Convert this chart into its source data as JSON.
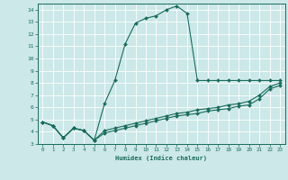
{
  "xlabel": "Humidex (Indice chaleur)",
  "background_color": "#cce8e8",
  "grid_color": "#ffffff",
  "line_color": "#1a6b5a",
  "xlim": [
    -0.5,
    23.5
  ],
  "ylim": [
    3,
    14.5
  ],
  "yticks": [
    3,
    4,
    5,
    6,
    7,
    8,
    9,
    10,
    11,
    12,
    13,
    14
  ],
  "xticks": [
    0,
    1,
    2,
    3,
    4,
    5,
    6,
    7,
    8,
    9,
    10,
    11,
    12,
    13,
    14,
    15,
    16,
    17,
    18,
    19,
    20,
    21,
    22,
    23
  ],
  "series": [
    {
      "x": [
        0,
        1,
        2,
        3,
        4,
        5,
        6,
        7,
        8,
        9,
        10,
        11,
        12,
        13,
        14,
        15,
        16,
        17,
        18,
        19,
        20,
        21,
        22,
        23
      ],
      "y": [
        4.8,
        4.5,
        3.5,
        4.3,
        4.1,
        3.3,
        6.3,
        8.2,
        11.2,
        12.9,
        13.3,
        13.5,
        14.0,
        14.3,
        13.7,
        8.2,
        8.2,
        8.2,
        8.2,
        8.2,
        8.2,
        8.2,
        8.2,
        8.2
      ]
    },
    {
      "x": [
        0,
        1,
        2,
        3,
        4,
        5,
        6,
        7,
        8,
        9,
        10,
        11,
        12,
        13,
        14,
        15,
        16,
        17,
        18,
        19,
        20,
        21,
        22,
        23
      ],
      "y": [
        4.8,
        4.5,
        3.5,
        4.3,
        4.1,
        3.3,
        4.1,
        4.3,
        4.5,
        4.7,
        4.9,
        5.1,
        5.3,
        5.5,
        5.6,
        5.8,
        5.9,
        6.0,
        6.2,
        6.3,
        6.5,
        7.0,
        7.7,
        8.0
      ]
    },
    {
      "x": [
        0,
        1,
        2,
        3,
        4,
        5,
        6,
        7,
        8,
        9,
        10,
        11,
        12,
        13,
        14,
        15,
        16,
        17,
        18,
        19,
        20,
        21,
        22,
        23
      ],
      "y": [
        4.8,
        4.5,
        3.5,
        4.3,
        4.1,
        3.3,
        3.9,
        4.1,
        4.3,
        4.5,
        4.7,
        4.9,
        5.1,
        5.3,
        5.4,
        5.5,
        5.7,
        5.8,
        5.9,
        6.1,
        6.2,
        6.7,
        7.5,
        7.8
      ]
    }
  ]
}
